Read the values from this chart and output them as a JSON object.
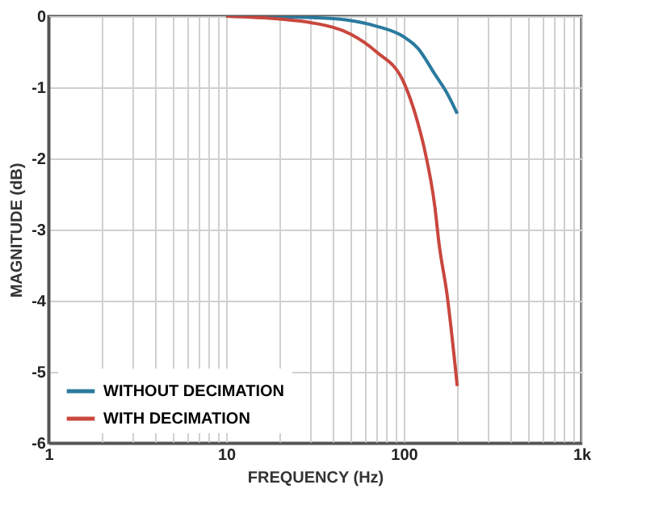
{
  "chart_data": {
    "type": "line",
    "xlabel": "FREQUENCY (Hz)",
    "ylabel": "MAGNITUDE (dB)",
    "log": "x",
    "xlim": [
      1,
      1000
    ],
    "ylim": [
      -6,
      0
    ],
    "xticks": [
      1,
      {
        "value": 2,
        "label": null
      },
      {
        "value": 3,
        "label": null
      },
      {
        "value": 4,
        "label": null
      },
      {
        "value": 5,
        "label": null
      },
      {
        "value": 6,
        "label": null
      },
      {
        "value": 7,
        "label": null
      },
      {
        "value": 8,
        "label": null
      },
      {
        "value": 9,
        "label": null
      },
      10,
      {
        "value": 20,
        "label": null
      },
      {
        "value": 30,
        "label": null
      },
      {
        "value": 40,
        "label": null
      },
      {
        "value": 50,
        "label": null
      },
      {
        "value": 60,
        "label": null
      },
      {
        "value": 70,
        "label": null
      },
      {
        "value": 80,
        "label": null
      },
      {
        "value": 90,
        "label": null
      },
      100,
      {
        "value": 200,
        "label": null
      },
      {
        "value": 300,
        "label": null
      },
      {
        "value": 400,
        "label": null
      },
      {
        "value": 500,
        "label": null
      },
      {
        "value": 600,
        "label": null
      },
      {
        "value": 700,
        "label": null
      },
      {
        "value": 800,
        "label": null
      },
      {
        "value": 900,
        "label": null
      },
      {
        "value": 1000,
        "label": "1k"
      }
    ],
    "yticks": [
      0,
      -1,
      -2,
      -3,
      -4,
      -5,
      -6
    ],
    "grid": true,
    "legend": "bottom left",
    "line_style": "solid",
    "marker": "none",
    "series": [
      {
        "name": "WITHOUT DECIMATION",
        "color": "#2b7a9e",
        "x": [
          10,
          20,
          30,
          47,
          70,
          100,
          120,
          150,
          175,
          200
        ],
        "values": [
          0,
          -0.01,
          -0.02,
          -0.05,
          -0.14,
          -0.29,
          -0.45,
          -0.82,
          -1.08,
          -1.37
        ]
      },
      {
        "name": "WITH DECIMATION",
        "color": "#c9473e",
        "x": [
          10,
          20,
          30,
          50,
          70,
          100,
          120,
          130,
          150,
          158,
          175,
          200
        ],
        "values": [
          0,
          -0.04,
          -0.09,
          -0.25,
          -0.5,
          -0.93,
          -1.5,
          -1.84,
          -2.7,
          -3.2,
          -3.9,
          -5.2
        ]
      }
    ]
  }
}
